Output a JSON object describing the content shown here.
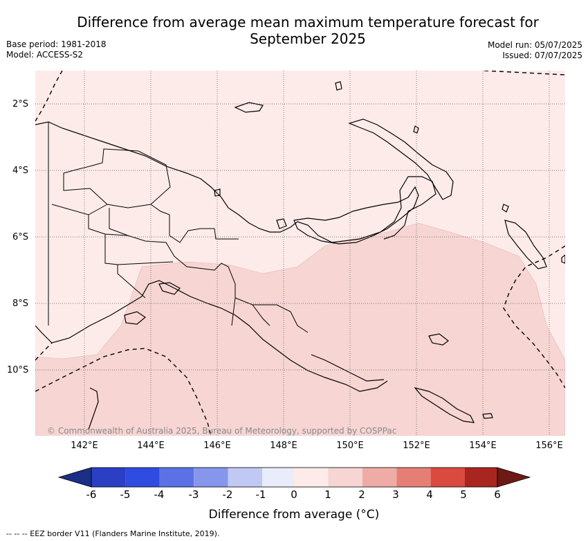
{
  "title_line1": "Difference from average mean maximum temperature forecast for",
  "title_line2": "September 2025",
  "base_period": "Base period: 1981-2018",
  "model": "Model: ACCESS-S2",
  "model_run": "Model run: 05/07/2025",
  "issued": "Issued: 07/07/2025",
  "lat_labels": [
    "2°S",
    "4°S",
    "6°S",
    "8°S",
    "10°S"
  ],
  "lon_labels": [
    "142°E",
    "144°E",
    "146°E",
    "148°E",
    "150°E",
    "152°E",
    "154°E",
    "156°E"
  ],
  "credit": "© Commonwealth of Australia 2025, Bureau of Meteorology, supported by COSPPac",
  "colorbar": {
    "ticks": [
      "-6",
      "-5",
      "-4",
      "-3",
      "-2",
      "-1",
      "0",
      "1",
      "2",
      "3",
      "4",
      "5",
      "6"
    ],
    "title": "Difference from average (°C)",
    "colors": [
      "#1c2f86",
      "#2a3fc4",
      "#2f4ce0",
      "#5a72e6",
      "#8696ec",
      "#c0c8f4",
      "#e8ecfb",
      "#fcebe8",
      "#f6d5d2",
      "#efaca6",
      "#e57f76",
      "#d94a3f",
      "#a8261f",
      "#6d1a14"
    ]
  },
  "legend_footer": "--  --  -- EEZ border V11 (Flanders Marine Institute, 2019).",
  "map_colors": {
    "light": "#fcebe9",
    "medium": "#f6d5d3",
    "land_line": "#000000",
    "grid": "#555555"
  }
}
